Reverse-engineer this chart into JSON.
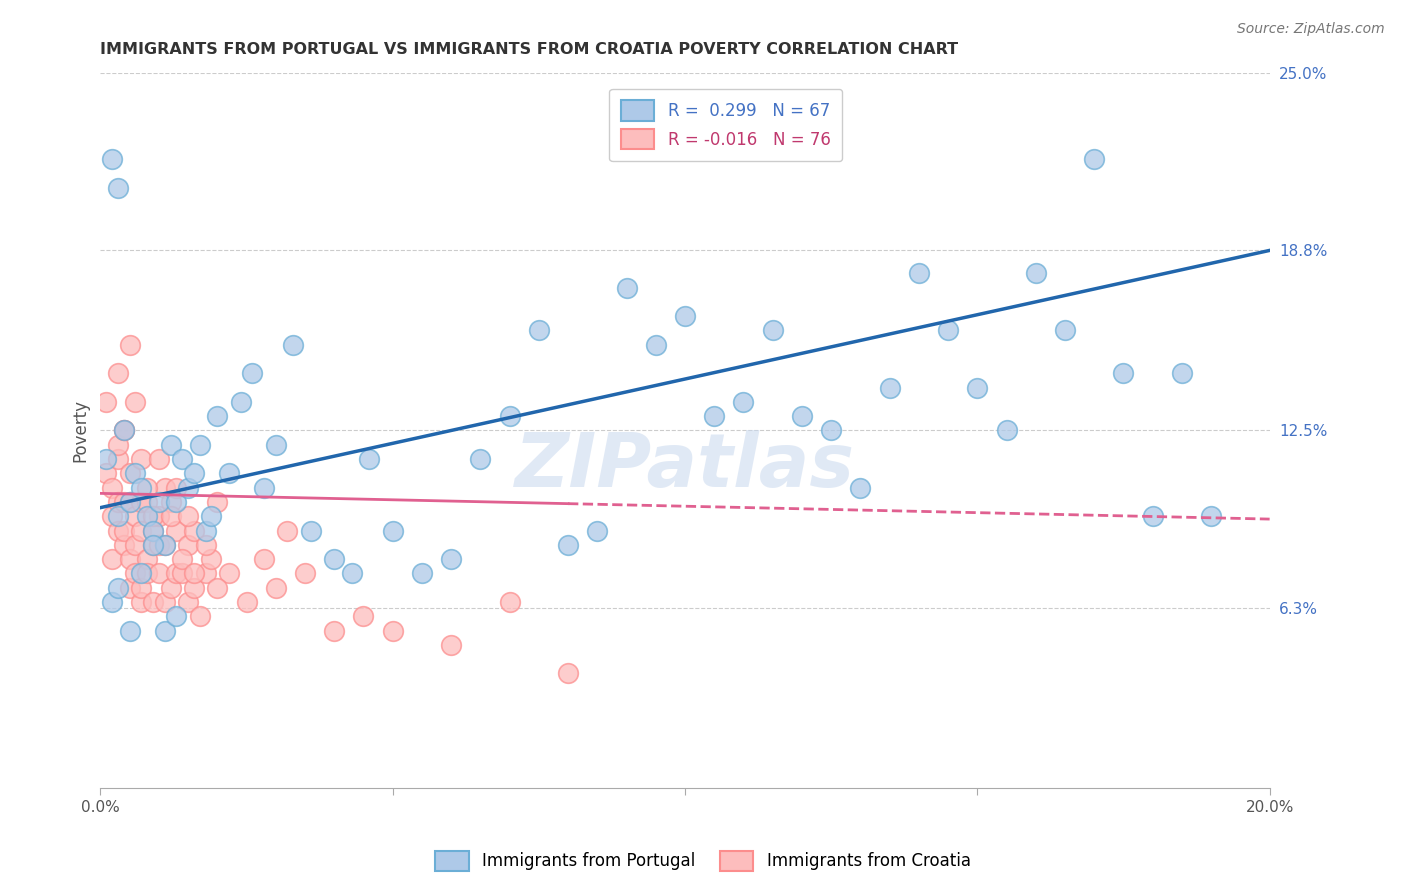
{
  "title": "IMMIGRANTS FROM PORTUGAL VS IMMIGRANTS FROM CROATIA POVERTY CORRELATION CHART",
  "source": "Source: ZipAtlas.com",
  "ylabel": "Poverty",
  "xlim": [
    0.0,
    0.2
  ],
  "ylim": [
    0.0,
    0.25
  ],
  "xticks": [
    0.0,
    0.05,
    0.1,
    0.15,
    0.2
  ],
  "xticklabels": [
    "0.0%",
    "",
    "",
    "",
    "20.0%"
  ],
  "ytick_right_positions": [
    0.0,
    0.063,
    0.125,
    0.188,
    0.25
  ],
  "ytick_right_labels": [
    "",
    "6.3%",
    "12.5%",
    "18.8%",
    "25.0%"
  ],
  "color_portugal": "#6baed6",
  "color_croatia": "#fc8d8d",
  "color_portugal_fill": "#aec9e8",
  "color_croatia_fill": "#fdbdbd",
  "R_portugal": 0.299,
  "N_portugal": 67,
  "R_croatia": -0.016,
  "N_croatia": 76,
  "legend_label_portugal": "Immigrants from Portugal",
  "legend_label_croatia": "Immigrants from Croatia",
  "watermark": "ZIPatlas",
  "pt_line_x0": 0.0,
  "pt_line_y0": 0.098,
  "pt_line_x1": 0.2,
  "pt_line_y1": 0.188,
  "cr_line_x0": 0.0,
  "cr_line_y0": 0.103,
  "cr_line_x1": 0.2,
  "cr_line_y1": 0.094,
  "cr_line_solid_end": 0.08,
  "portugal_x": [
    0.001,
    0.002,
    0.003,
    0.003,
    0.004,
    0.005,
    0.006,
    0.007,
    0.008,
    0.009,
    0.01,
    0.011,
    0.012,
    0.013,
    0.014,
    0.015,
    0.016,
    0.017,
    0.018,
    0.019,
    0.02,
    0.022,
    0.024,
    0.026,
    0.028,
    0.03,
    0.033,
    0.036,
    0.04,
    0.043,
    0.046,
    0.05,
    0.055,
    0.06,
    0.065,
    0.07,
    0.075,
    0.08,
    0.085,
    0.09,
    0.095,
    0.1,
    0.105,
    0.11,
    0.115,
    0.12,
    0.125,
    0.13,
    0.135,
    0.14,
    0.145,
    0.15,
    0.155,
    0.16,
    0.165,
    0.17,
    0.175,
    0.18,
    0.185,
    0.19,
    0.002,
    0.003,
    0.005,
    0.007,
    0.009,
    0.011,
    0.013
  ],
  "portugal_y": [
    0.115,
    0.22,
    0.095,
    0.21,
    0.125,
    0.1,
    0.11,
    0.105,
    0.095,
    0.09,
    0.1,
    0.085,
    0.12,
    0.1,
    0.115,
    0.105,
    0.11,
    0.12,
    0.09,
    0.095,
    0.13,
    0.11,
    0.135,
    0.145,
    0.105,
    0.12,
    0.155,
    0.09,
    0.08,
    0.075,
    0.115,
    0.09,
    0.075,
    0.08,
    0.115,
    0.13,
    0.16,
    0.085,
    0.09,
    0.175,
    0.155,
    0.165,
    0.13,
    0.135,
    0.16,
    0.13,
    0.125,
    0.105,
    0.14,
    0.18,
    0.16,
    0.14,
    0.125,
    0.18,
    0.16,
    0.22,
    0.145,
    0.095,
    0.145,
    0.095,
    0.065,
    0.07,
    0.055,
    0.075,
    0.085,
    0.055,
    0.06
  ],
  "croatia_x": [
    0.001,
    0.001,
    0.002,
    0.002,
    0.002,
    0.003,
    0.003,
    0.003,
    0.003,
    0.004,
    0.004,
    0.004,
    0.004,
    0.005,
    0.005,
    0.005,
    0.005,
    0.006,
    0.006,
    0.006,
    0.007,
    0.007,
    0.007,
    0.007,
    0.008,
    0.008,
    0.008,
    0.009,
    0.009,
    0.009,
    0.01,
    0.01,
    0.01,
    0.011,
    0.011,
    0.012,
    0.012,
    0.013,
    0.013,
    0.014,
    0.015,
    0.015,
    0.016,
    0.016,
    0.017,
    0.018,
    0.019,
    0.02,
    0.022,
    0.025,
    0.028,
    0.03,
    0.032,
    0.035,
    0.04,
    0.045,
    0.05,
    0.06,
    0.07,
    0.08,
    0.003,
    0.004,
    0.005,
    0.006,
    0.007,
    0.008,
    0.009,
    0.01,
    0.011,
    0.012,
    0.013,
    0.014,
    0.015,
    0.016,
    0.018,
    0.02
  ],
  "croatia_y": [
    0.11,
    0.135,
    0.105,
    0.095,
    0.08,
    0.1,
    0.115,
    0.09,
    0.12,
    0.1,
    0.085,
    0.125,
    0.09,
    0.1,
    0.07,
    0.08,
    0.11,
    0.075,
    0.095,
    0.085,
    0.065,
    0.1,
    0.07,
    0.09,
    0.08,
    0.075,
    0.1,
    0.085,
    0.065,
    0.09,
    0.075,
    0.095,
    0.085,
    0.065,
    0.105,
    0.1,
    0.07,
    0.09,
    0.075,
    0.075,
    0.085,
    0.065,
    0.09,
    0.07,
    0.06,
    0.075,
    0.08,
    0.1,
    0.075,
    0.065,
    0.08,
    0.07,
    0.09,
    0.075,
    0.055,
    0.06,
    0.055,
    0.05,
    0.065,
    0.04,
    0.145,
    0.125,
    0.155,
    0.135,
    0.115,
    0.105,
    0.095,
    0.115,
    0.085,
    0.095,
    0.105,
    0.08,
    0.095,
    0.075,
    0.085,
    0.07
  ]
}
